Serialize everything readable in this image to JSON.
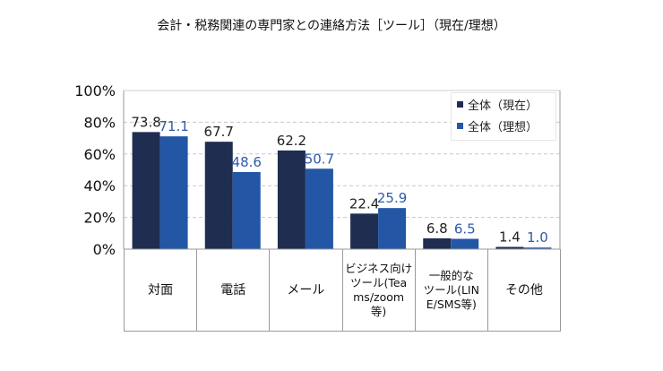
{
  "chart_data": {
    "type": "bar",
    "title": "会計・税務関連の専門家との連絡方法［ツール］（現在/理想）",
    "xlabel": "",
    "ylabel": "",
    "ylim": [
      0,
      100
    ],
    "y_ticks": [
      "0%",
      "20%",
      "40%",
      "60%",
      "80%",
      "100%"
    ],
    "y_tick_values": [
      0,
      20,
      40,
      60,
      80,
      100
    ],
    "grid": true,
    "legend_position": "top-right",
    "categories": [
      "対面",
      "電話",
      "メール",
      "ビジネス向けツール(Teams/zoom等)",
      "一般的なツール(LINE/SMS等)",
      "その他"
    ],
    "category_display": [
      "対面",
      "電話",
      "メール",
      "ビジネス向け\nツール(Tea\nms/zoom\n等)",
      "一般的な\nツール(LIN\nE/SMS等)",
      "その他"
    ],
    "series": [
      {
        "name": "全体（現在）",
        "color": "#1f2d50",
        "label_color": "#222222",
        "values": [
          73.8,
          67.7,
          62.2,
          22.4,
          6.8,
          1.4
        ],
        "labels": [
          "73.8",
          "67.7",
          "62.2",
          "22.4",
          "6.8",
          "1.4"
        ]
      },
      {
        "name": "全体（理想）",
        "color": "#2357a6",
        "label_color": "#2f5ba8",
        "values": [
          71.1,
          48.6,
          50.7,
          25.9,
          6.5,
          1.0
        ],
        "labels": [
          "71.1",
          "48.6",
          "50.7",
          "25.9",
          "6.5",
          "1.0"
        ]
      }
    ]
  }
}
